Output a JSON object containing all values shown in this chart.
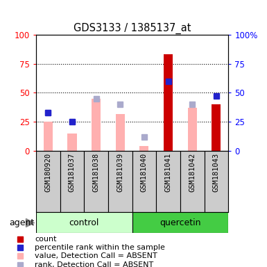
{
  "title": "GDS3133 / 1385137_at",
  "samples": [
    "GSM180920",
    "GSM181037",
    "GSM181038",
    "GSM181039",
    "GSM181040",
    "GSM181041",
    "GSM181042",
    "GSM181043"
  ],
  "red_bars": [
    0,
    0,
    0,
    0,
    0,
    83,
    0,
    40
  ],
  "blue_squares": [
    33,
    25,
    null,
    null,
    null,
    60,
    null,
    47
  ],
  "pink_bars": [
    25,
    15,
    45,
    32,
    4,
    null,
    37,
    40
  ],
  "lightblue_squares": [
    33,
    25,
    45,
    40,
    12,
    null,
    40,
    null
  ],
  "ylim": [
    0,
    100
  ],
  "yticks": [
    0,
    25,
    50,
    75,
    100
  ],
  "ytick_labels_right": [
    "0",
    "25",
    "50",
    "75",
    "100%"
  ],
  "red_color": "#cc0000",
  "blue_color": "#2222cc",
  "pink_color": "#ffb0b0",
  "lightblue_color": "#aaaacc",
  "control_color": "#ccffcc",
  "quercetin_color": "#44cc44",
  "sample_bg": "#cccccc",
  "legend_items": [
    "count",
    "percentile rank within the sample",
    "value, Detection Call = ABSENT",
    "rank, Detection Call = ABSENT"
  ]
}
